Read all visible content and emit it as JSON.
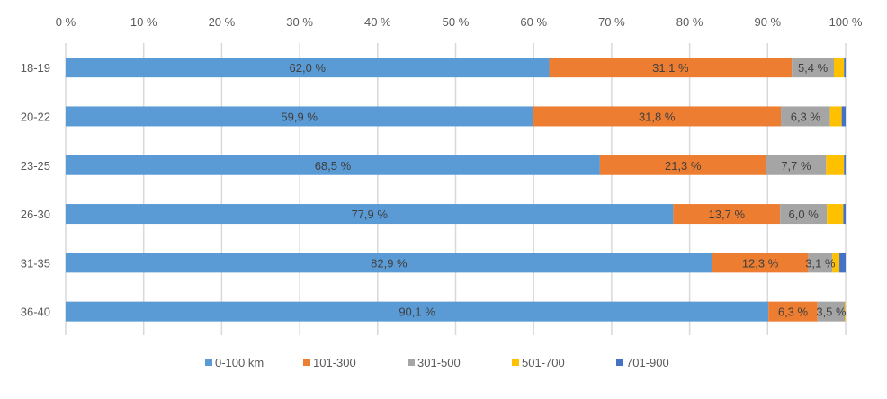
{
  "chart_data": {
    "type": "bar",
    "orientation": "horizontal",
    "stacked": "percent",
    "title": "",
    "xlabel": "",
    "ylabel": "",
    "xlim": [
      0,
      100
    ],
    "x_ticks": [
      "0 %",
      "10 %",
      "20 %",
      "30 %",
      "40 %",
      "50 %",
      "60 %",
      "70 %",
      "80 %",
      "90 %",
      "100 %"
    ],
    "x_axis_position": "top",
    "grid": true,
    "legend_position": "bottom",
    "categories": [
      "18-19",
      "20-22",
      "23-25",
      "26-30",
      "31-35",
      "36-40"
    ],
    "series": [
      {
        "name": "0-100 km",
        "color": "#5B9BD5",
        "values": [
          62.0,
          59.9,
          68.5,
          77.9,
          82.9,
          90.1
        ],
        "labels": [
          "62,0 %",
          "59,9 %",
          "68,5 %",
          "77,9 %",
          "82,9 %",
          "90,1 %"
        ]
      },
      {
        "name": "101-300",
        "color": "#ED7D31",
        "values": [
          31.1,
          31.8,
          21.3,
          13.7,
          12.3,
          6.3
        ],
        "labels": [
          "31,1 %",
          "31,8 %",
          "21,3 %",
          "13,7 %",
          "12,3 %",
          "6,3 %"
        ]
      },
      {
        "name": "301-500",
        "color": "#A5A5A5",
        "values": [
          5.4,
          6.3,
          7.7,
          6.0,
          3.1,
          3.5
        ],
        "labels": [
          "5,4 %",
          "6,3 %",
          "7,7 %",
          "6,0 %",
          "3,1 %",
          "3,5 %"
        ]
      },
      {
        "name": "501-700",
        "color": "#FFC000",
        "values": [
          1.3,
          1.5,
          2.3,
          2.1,
          0.9,
          0.1
        ],
        "labels": [
          "",
          "",
          "",
          "",
          "",
          ""
        ]
      },
      {
        "name": "701-900",
        "color": "#4472C4",
        "values": [
          0.2,
          0.5,
          0.2,
          0.3,
          0.8,
          0.0
        ],
        "labels": [
          "",
          "",
          "",
          "",
          "",
          ""
        ]
      }
    ]
  }
}
